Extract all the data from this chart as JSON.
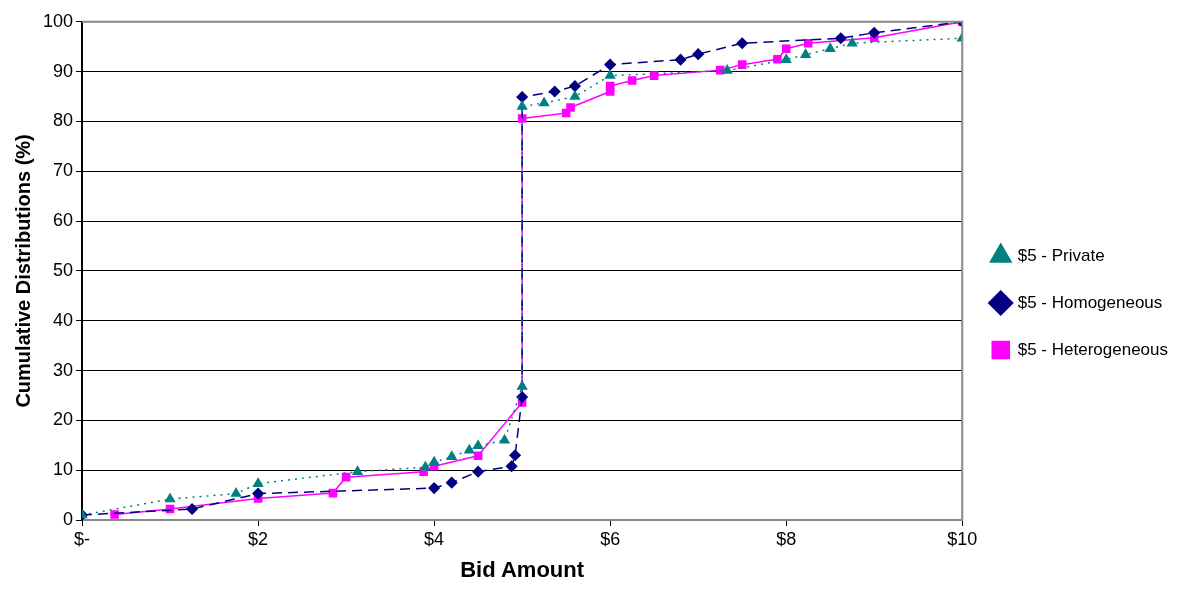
{
  "chart_data": {
    "type": "line",
    "xlabel": "Bid Amount",
    "ylabel": "Cumulative Distributions (%)",
    "xlim": [
      0,
      10
    ],
    "xticks": [
      {
        "value": 0,
        "label": "$-"
      },
      {
        "value": 2,
        "label": "$2"
      },
      {
        "value": 4,
        "label": "$4"
      },
      {
        "value": 6,
        "label": "$6"
      },
      {
        "value": 8,
        "label": "$8"
      },
      {
        "value": 10,
        "label": "$10"
      }
    ],
    "ylim": [
      0,
      100
    ],
    "yticks": [
      0,
      10,
      20,
      30,
      40,
      50,
      60,
      70,
      80,
      90,
      100
    ],
    "grid": "y",
    "legend": "right",
    "series": [
      {
        "name": "$5 - Private",
        "color": "#008080",
        "marker": "triangle",
        "line_style": "dotted",
        "x": [
          0,
          1,
          1.75,
          2,
          3.13,
          3.9,
          4,
          4.2,
          4.4,
          4.5,
          4.8,
          5,
          5,
          5.25,
          5.6,
          6,
          7.33,
          8,
          8.22,
          8.5,
          8.75,
          10
        ],
        "values": [
          1,
          4.2,
          5.3,
          7.3,
          9.7,
          10.6,
          11.6,
          12.7,
          14,
          14.9,
          16,
          26.8,
          83,
          83.7,
          85,
          89.2,
          90.2,
          92.4,
          93.4,
          94.6,
          95.7,
          96.7
        ]
      },
      {
        "name": "$5 - Homogeneous",
        "color": "#000080",
        "marker": "diamond",
        "line_style": "dashed",
        "x": [
          0,
          1.25,
          2,
          4,
          4.2,
          4.5,
          4.88,
          4.92,
          5,
          5,
          5.37,
          5.6,
          6,
          6.8,
          7,
          7.5,
          8.62,
          9,
          10
        ],
        "values": [
          1,
          2.2,
          5.3,
          6.4,
          7.5,
          9.7,
          10.8,
          13,
          24.7,
          84.9,
          86,
          87.1,
          91.4,
          92.4,
          93.5,
          95.7,
          96.7,
          97.8,
          100
        ]
      },
      {
        "name": "$5 - Heterogeneous",
        "color": "#ff00ff",
        "marker": "square",
        "line_style": "solid",
        "x": [
          0.37,
          1,
          2,
          2.85,
          3,
          3.88,
          4,
          4.5,
          5,
          5,
          5.5,
          5.55,
          6,
          6,
          6.25,
          6.5,
          7.25,
          7.5,
          7.9,
          8,
          8.25,
          9,
          10
        ],
        "values": [
          1.1,
          2.2,
          4.3,
          5.4,
          8.6,
          9.7,
          10.8,
          12.9,
          23.6,
          80.6,
          81.7,
          82.8,
          86,
          87.1,
          88.2,
          89.2,
          90.3,
          91.4,
          92.5,
          94.6,
          95.7,
          96.8,
          100
        ]
      }
    ]
  }
}
